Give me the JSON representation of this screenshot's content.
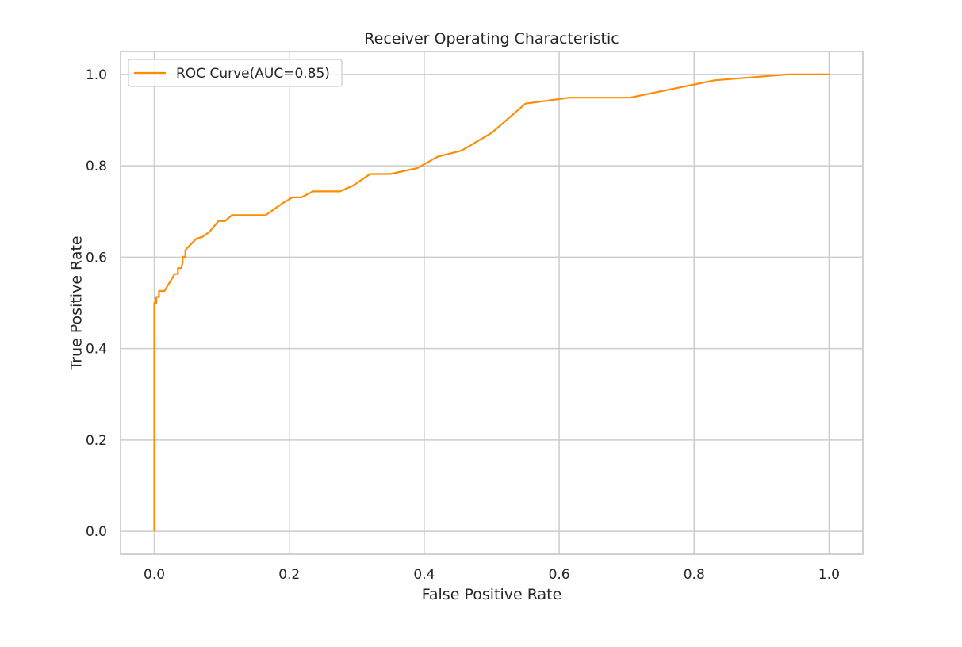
{
  "chart_data": {
    "type": "line",
    "title": "Receiver Operating Characteristic",
    "xlabel": "False Positive Rate",
    "ylabel": "True Positive Rate",
    "xlim": [
      -0.05,
      1.05
    ],
    "ylim": [
      -0.05,
      1.05
    ],
    "xticks": [
      0.0,
      0.2,
      0.4,
      0.6,
      0.8,
      1.0
    ],
    "yticks": [
      0.0,
      0.2,
      0.4,
      0.6,
      0.8,
      1.0
    ],
    "xtick_labels": [
      "0.0",
      "0.2",
      "0.4",
      "0.6",
      "0.8",
      "1.0"
    ],
    "ytick_labels": [
      "0.0",
      "0.2",
      "0.4",
      "0.6",
      "0.8",
      "1.0"
    ],
    "grid": true,
    "legend": "upper-left",
    "series": [
      {
        "name": "ROC Curve(AUC=0.85)",
        "color": "#ff8c00",
        "x": [
          0.0,
          0.0,
          0.0,
          0.003,
          0.003,
          0.007,
          0.007,
          0.015,
          0.02,
          0.025,
          0.03,
          0.035,
          0.035,
          0.04,
          0.042,
          0.042,
          0.046,
          0.046,
          0.05,
          0.062,
          0.072,
          0.082,
          0.095,
          0.105,
          0.115,
          0.165,
          0.19,
          0.205,
          0.218,
          0.235,
          0.275,
          0.295,
          0.32,
          0.35,
          0.39,
          0.42,
          0.455,
          0.5,
          0.55,
          0.615,
          0.705,
          0.83,
          0.94,
          1.0
        ],
        "y": [
          0.0,
          0.5,
          0.5,
          0.5,
          0.513,
          0.513,
          0.526,
          0.526,
          0.538,
          0.55,
          0.563,
          0.563,
          0.576,
          0.576,
          0.588,
          0.601,
          0.601,
          0.615,
          0.622,
          0.64,
          0.645,
          0.656,
          0.679,
          0.679,
          0.692,
          0.692,
          0.718,
          0.731,
          0.731,
          0.744,
          0.744,
          0.757,
          0.782,
          0.782,
          0.795,
          0.82,
          0.833,
          0.872,
          0.936,
          0.949,
          0.949,
          0.987,
          1.0,
          1.0
        ]
      }
    ]
  }
}
